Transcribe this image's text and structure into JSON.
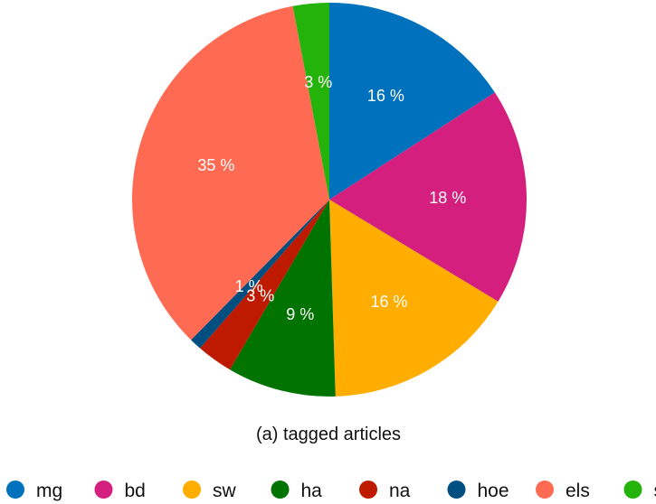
{
  "chart_data": {
    "type": "pie",
    "caption": "(a) tagged articles",
    "legend_position": "bottom",
    "slices": [
      {
        "name": "mg",
        "value": 16,
        "label": "16 %",
        "color": "#0072bd"
      },
      {
        "name": "bd",
        "value": 18,
        "label": "18 %",
        "color": "#d41f7e"
      },
      {
        "name": "sw",
        "value": 16,
        "label": "16 %",
        "color": "#ffae00"
      },
      {
        "name": "ha",
        "value": 9,
        "label": "9 %",
        "color": "#007300"
      },
      {
        "name": "na",
        "value": 3,
        "label": "3 %",
        "color": "#bd1a00"
      },
      {
        "name": "hoe",
        "value": 1,
        "label": "1 %",
        "color": "#004f80"
      },
      {
        "name": "els",
        "value": 35,
        "label": "35 %",
        "color": "#ff6a52"
      },
      {
        "name": "so",
        "value": 3,
        "label": "3 %",
        "color": "#23b30a"
      }
    ]
  }
}
